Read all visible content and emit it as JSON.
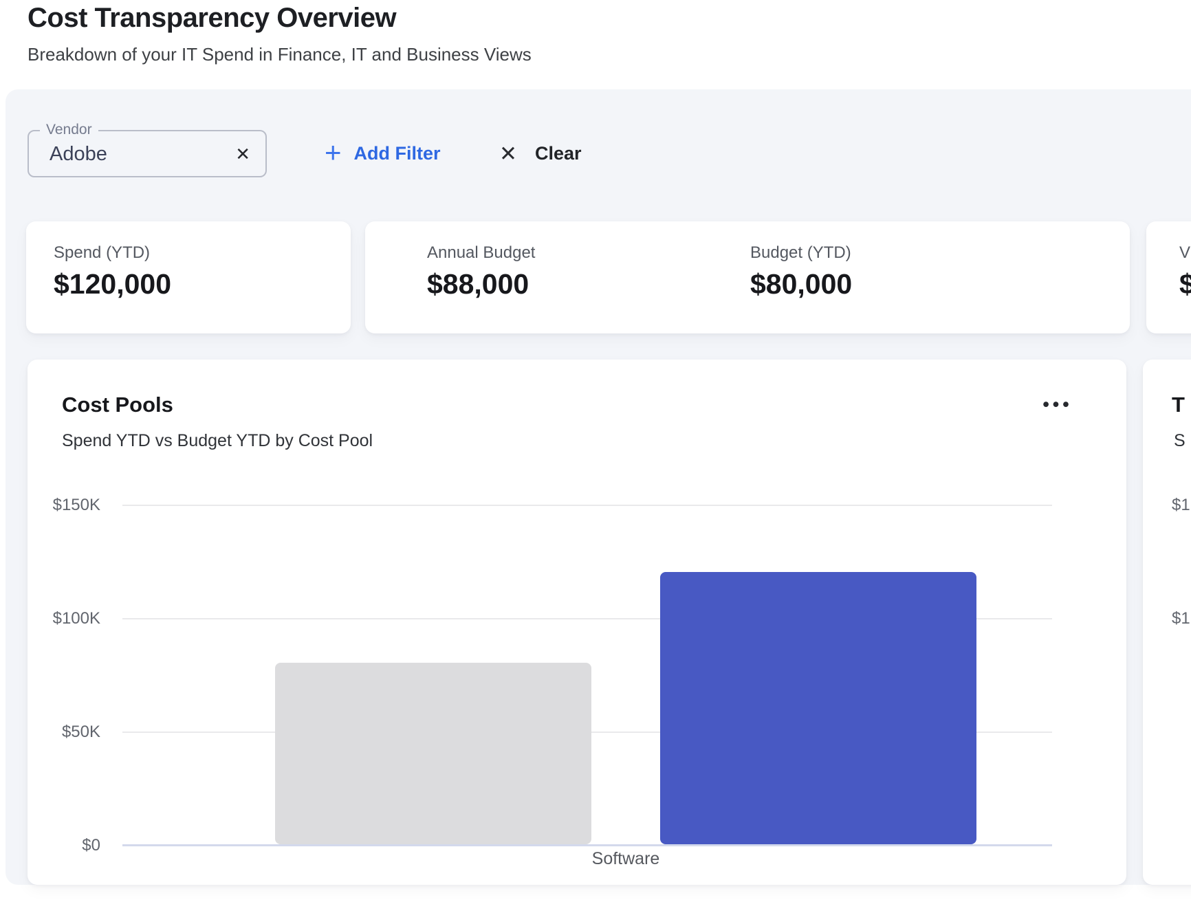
{
  "header": {
    "title": "Cost Transparency Overview",
    "subtitle": "Breakdown of your IT Spend in Finance, IT and Business Views"
  },
  "filters": {
    "vendor_chip": {
      "label": "Vendor",
      "value": "Adobe",
      "remove_icon": "✕"
    },
    "add_filter": {
      "icon": "+",
      "label": "Add Filter"
    },
    "clear": {
      "icon": "✕",
      "label": "Clear"
    }
  },
  "kpis": {
    "spend_ytd": {
      "label": "Spend (YTD)",
      "value": "$120,000"
    },
    "annual_budget": {
      "label": "Annual Budget",
      "value": "$88,000"
    },
    "budget_ytd": {
      "label": "Budget (YTD)",
      "value": "$80,000"
    },
    "cut_card": {
      "label": "V",
      "value": "$"
    }
  },
  "cost_pools": {
    "title": "Cost Pools",
    "subtitle": "Spend YTD vs Budget YTD by Cost Pool",
    "menu_icon": "•••"
  },
  "cut_chart_card": {
    "title": "T",
    "subtitle": "S",
    "tick_labels": [
      "$1",
      "$1"
    ]
  },
  "chart_data": {
    "type": "bar",
    "title": "Cost Pools",
    "subtitle": "Spend YTD vs Budget YTD by Cost Pool",
    "categories": [
      "Software"
    ],
    "series": [
      {
        "name": "Budget YTD",
        "values": [
          80000
        ],
        "color": "#dcdcde"
      },
      {
        "name": "Spend YTD",
        "values": [
          120000
        ],
        "color": "#4859c3"
      }
    ],
    "ylim": [
      0,
      150000
    ],
    "ytick_labels": [
      "$150K",
      "$100K",
      "$50K",
      "$0"
    ],
    "ytick_values": [
      150000,
      100000,
      50000,
      0
    ],
    "grid": true,
    "legend": "none"
  },
  "colors": {
    "accent_blue": "#2e68e2",
    "bar_blue": "#4859c3",
    "bar_gray": "#dcdcde",
    "panel_bg": "#f3f5f9",
    "axis_line": "#d3d9ec",
    "gridline": "#e9e9eb",
    "title_text": "#1d1f23"
  }
}
